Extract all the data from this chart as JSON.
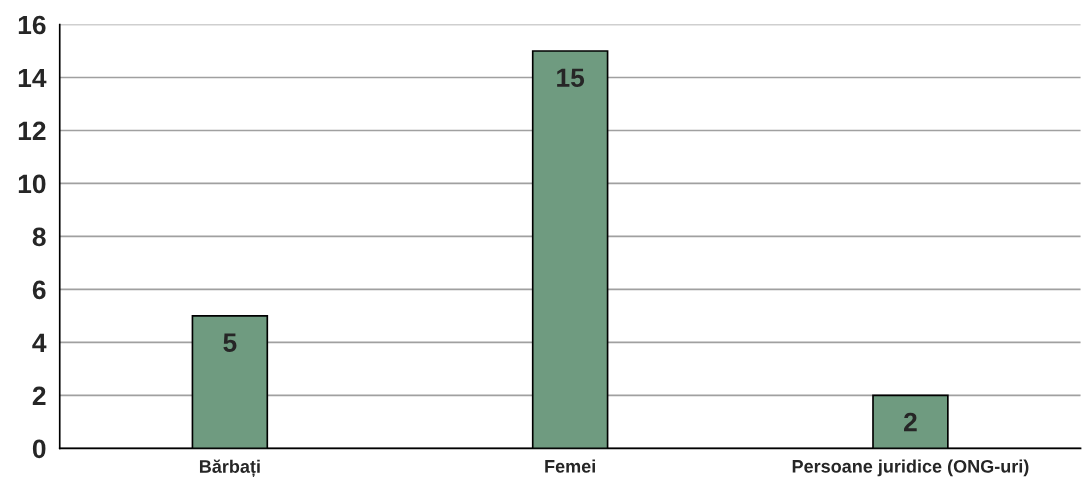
{
  "chart_data": {
    "type": "bar",
    "categories": [
      "Bărbați",
      "Femei",
      "Persoane juridice (ONG-uri)"
    ],
    "values": [
      5,
      15,
      2
    ],
    "color": "#6f9b80",
    "ylim": [
      0,
      16
    ],
    "yticks": [
      0,
      2,
      4,
      6,
      8,
      10,
      12,
      14,
      16
    ],
    "grid": "y",
    "data_labels": true
  }
}
